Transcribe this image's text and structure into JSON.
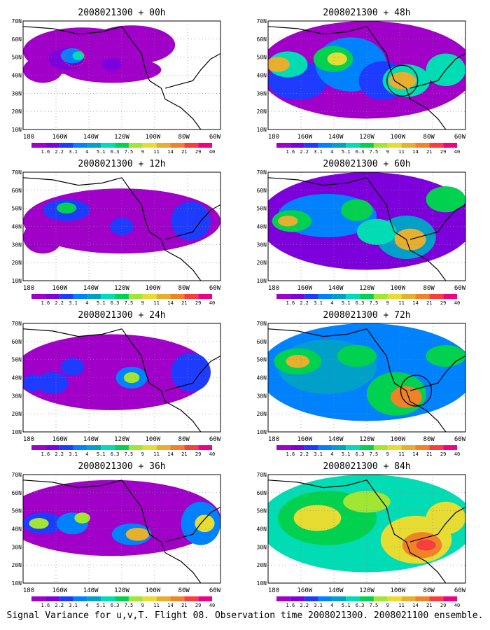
{
  "figure": {
    "caption": "Signal Variance for u,v,T. Flight 08. Observation time 2008021300. 2008021100 ensemble.",
    "lat_labels": [
      "70N",
      "60N",
      "50N",
      "40N",
      "30N",
      "20N",
      "10N"
    ],
    "lon_labels": [
      "180",
      "160W",
      "140W",
      "120W",
      "100W",
      "80W",
      "60W"
    ],
    "colorbar": {
      "labels": [
        "1.6",
        "2.2",
        "3.1",
        "4",
        "5.1",
        "6.3",
        "7.5",
        "9",
        "11",
        "14",
        "21",
        "29",
        "40"
      ],
      "colors": [
        "#a000c8",
        "#7d00dc",
        "#1e3cff",
        "#0082ff",
        "#00a0c8",
        "#00dcb4",
        "#00d250",
        "#a0e632",
        "#e6dc32",
        "#e6af2d",
        "#f08228",
        "#fa3c3c",
        "#f00082"
      ]
    },
    "panels": [
      {
        "title": "2008021300 + 00h"
      },
      {
        "title": "2008021300 + 48h"
      },
      {
        "title": "2008021300 + 12h"
      },
      {
        "title": "2008021300 + 60h"
      },
      {
        "title": "2008021300 + 24h"
      },
      {
        "title": "2008021300 + 72h"
      },
      {
        "title": "2008021300 + 36h"
      },
      {
        "title": "2008021300 + 84h"
      }
    ]
  }
}
